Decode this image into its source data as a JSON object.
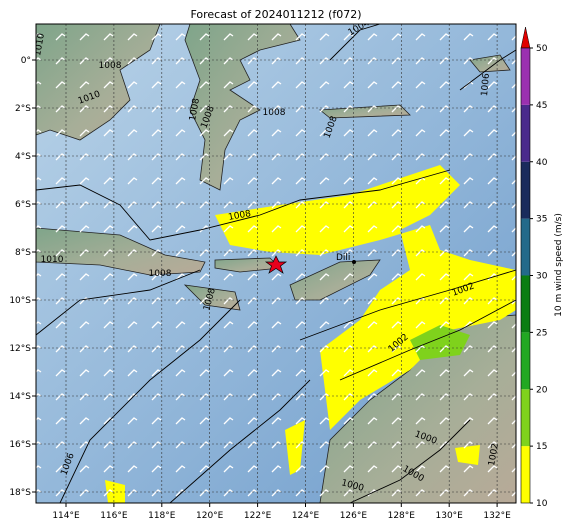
{
  "header": {
    "title": "Forecast of 2024011212 (f072)"
  },
  "map": {
    "lon_labels": [
      "114°E",
      "116°E",
      "118°E",
      "120°E",
      "122°E",
      "124°E",
      "126°E",
      "128°E",
      "130°E",
      "132°E"
    ],
    "lat_labels": [
      "0°",
      "2°S",
      "4°S",
      "6°S",
      "8°S",
      "10°S",
      "12°S",
      "14°S",
      "16°S",
      "18°S"
    ],
    "place": "Dili",
    "contour_labels": [
      "1010",
      "1010",
      "1010",
      "1008",
      "1008",
      "1008",
      "1008",
      "1008",
      "1008",
      "1008",
      "1004",
      "1002",
      "1002",
      "1000",
      "1000",
      "1000",
      "1006",
      "1002",
      "1006",
      "1008"
    ]
  },
  "colorbar": {
    "label": "10 m wind speed (m/s)",
    "ticks": [
      10,
      15,
      20,
      25,
      30,
      35,
      40,
      45,
      50
    ]
  }
}
